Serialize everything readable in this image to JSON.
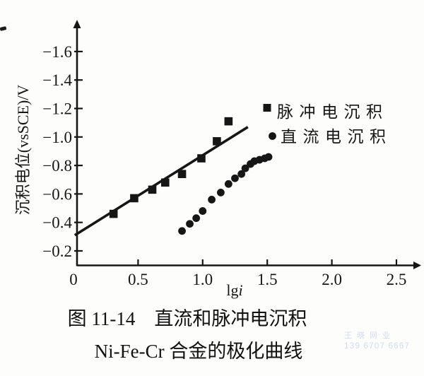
{
  "figure": {
    "caption_line1": "图 11-14　直流和脉冲电沉积",
    "caption_line2": "Ni-Fe-Cr 合金的极化曲线",
    "watermark_line1": "王晓网业",
    "watermark_line2": "139 6707 6667"
  },
  "chart_data": {
    "type": "scatter",
    "title": "",
    "xlabel": "lgi",
    "xlabel_parts": [
      {
        "t": "lg",
        "style": "normal"
      },
      {
        "t": "i",
        "style": "italic"
      }
    ],
    "ylabel": "沉积电位(vsSCE)/V",
    "xlim": [
      0,
      2.6
    ],
    "ylim": [
      -0.1,
      -1.7
    ],
    "y_axis_inverted_note": "more negative potential plotted upward",
    "grid": false,
    "legend_position": "upper-right-inside",
    "x_ticks": [
      0,
      0.5,
      1.0,
      1.5,
      2.0,
      2.5
    ],
    "x_tick_labels": [
      "0",
      "0.5",
      "1.0",
      "1.5",
      "2.0",
      "2.5"
    ],
    "y_ticks": [
      -0.2,
      -0.4,
      -0.6,
      -0.8,
      -1.0,
      -1.2,
      -1.4,
      -1.6
    ],
    "y_tick_labels": [
      "−0.2",
      "−0.4",
      "−0.6",
      "−0.8",
      "−1.0",
      "−1.2",
      "−1.4",
      "−1.6"
    ],
    "series": [
      {
        "name": "脉冲电沉积",
        "marker": "square",
        "points": [
          [
            0.31,
            -0.46
          ],
          [
            0.47,
            -0.57
          ],
          [
            0.61,
            -0.63
          ],
          [
            0.71,
            -0.68
          ],
          [
            0.84,
            -0.74
          ],
          [
            0.99,
            -0.85
          ],
          [
            1.11,
            -0.97
          ],
          [
            1.2,
            -1.11
          ]
        ]
      },
      {
        "name": "直流电沉积",
        "marker": "circle",
        "points": [
          [
            0.84,
            -0.34
          ],
          [
            0.9,
            -0.39
          ],
          [
            0.95,
            -0.43
          ],
          [
            1.0,
            -0.48
          ],
          [
            1.07,
            -0.56
          ],
          [
            1.14,
            -0.61
          ],
          [
            1.2,
            -0.67
          ],
          [
            1.25,
            -0.71
          ],
          [
            1.3,
            -0.74
          ],
          [
            1.33,
            -0.78
          ],
          [
            1.37,
            -0.81
          ],
          [
            1.4,
            -0.83
          ],
          [
            1.44,
            -0.84
          ],
          [
            1.48,
            -0.85
          ],
          [
            1.51,
            -0.86
          ]
        ]
      }
    ],
    "fit_line": {
      "series": "脉冲电沉积",
      "from": [
        0.01,
        -0.31
      ],
      "to": [
        1.35,
        -1.07
      ]
    },
    "colors": {
      "ink": "#161616",
      "background": "#fdfdfc"
    }
  }
}
